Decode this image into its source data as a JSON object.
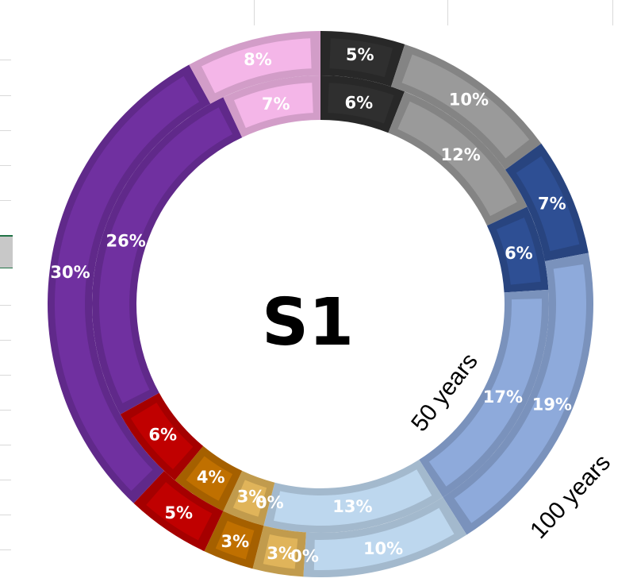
{
  "chart_data": {
    "type": "doughnut",
    "title": "S1",
    "series": [
      {
        "name": "50 years",
        "values": [
          6,
          12,
          6,
          17,
          13,
          0,
          3,
          4,
          6,
          26,
          7
        ],
        "labels": [
          "6%",
          "12%",
          "6%",
          "17%",
          "13%",
          "0%",
          "3%",
          "4%",
          "6%",
          "26%",
          "7%"
        ]
      },
      {
        "name": "100 years",
        "values": [
          5,
          10,
          7,
          19,
          10,
          0,
          3,
          3,
          5,
          30,
          8
        ],
        "labels": [
          "5%",
          "10%",
          "7%",
          "19%",
          "10%",
          "0%",
          "3%",
          "3%",
          "5%",
          "30%",
          "8%"
        ]
      }
    ],
    "colors": [
      "#2f2f2f",
      "#9a9a9a",
      "#2e4f94",
      "#8eaadb",
      "#bdd7ee",
      "#7a5a1a",
      "#e0b45a",
      "#c07000",
      "#c00000",
      "#7030a0",
      "#f4b6e8"
    ]
  }
}
